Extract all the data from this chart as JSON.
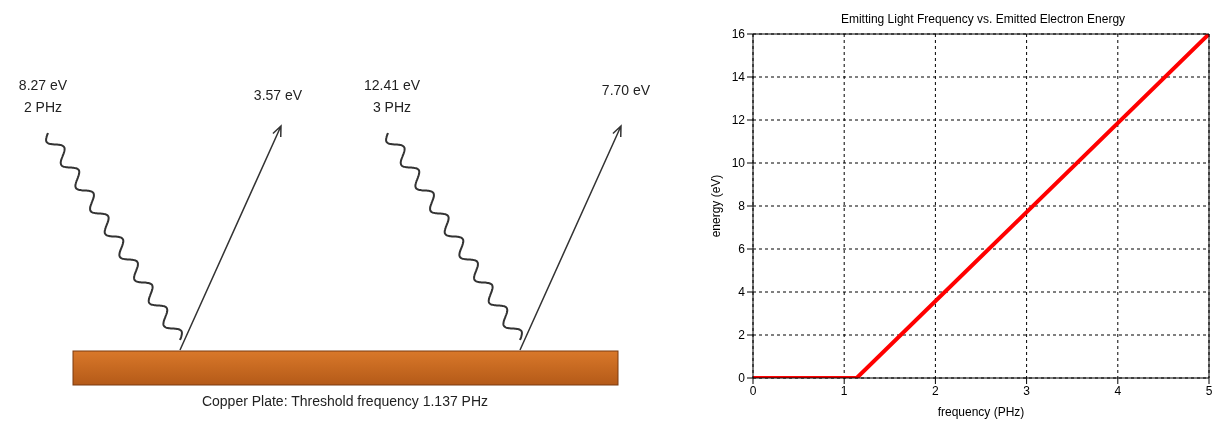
{
  "chart_data": [
    {
      "type": "other",
      "annotations": [
        "8.27 eV",
        "2 PHz",
        "3.57 eV",
        "12.41 eV",
        "3 PHz",
        "7.70 eV",
        "Copper Plate: Threshold frequency 1.137 PHz"
      ]
    },
    {
      "type": "line",
      "title": "Emitting Light Frequency vs. Emitted Electron Energy",
      "xlabel": "frequency (PHz)",
      "ylabel": "energy (eV)",
      "x": [
        0,
        1.137,
        5
      ],
      "series": [
        {
          "color": "#ff0000",
          "values": [
            0,
            0,
            16
          ]
        }
      ],
      "xlim": [
        0,
        5
      ],
      "xticks": [
        0,
        1,
        2,
        3,
        4,
        5
      ],
      "ylim": [
        0,
        16
      ],
      "yticks": [
        0,
        2,
        4,
        6,
        8,
        10,
        12,
        14,
        16
      ],
      "grid": true,
      "marker": "none",
      "line_style": "solid",
      "legend": false
    }
  ]
}
